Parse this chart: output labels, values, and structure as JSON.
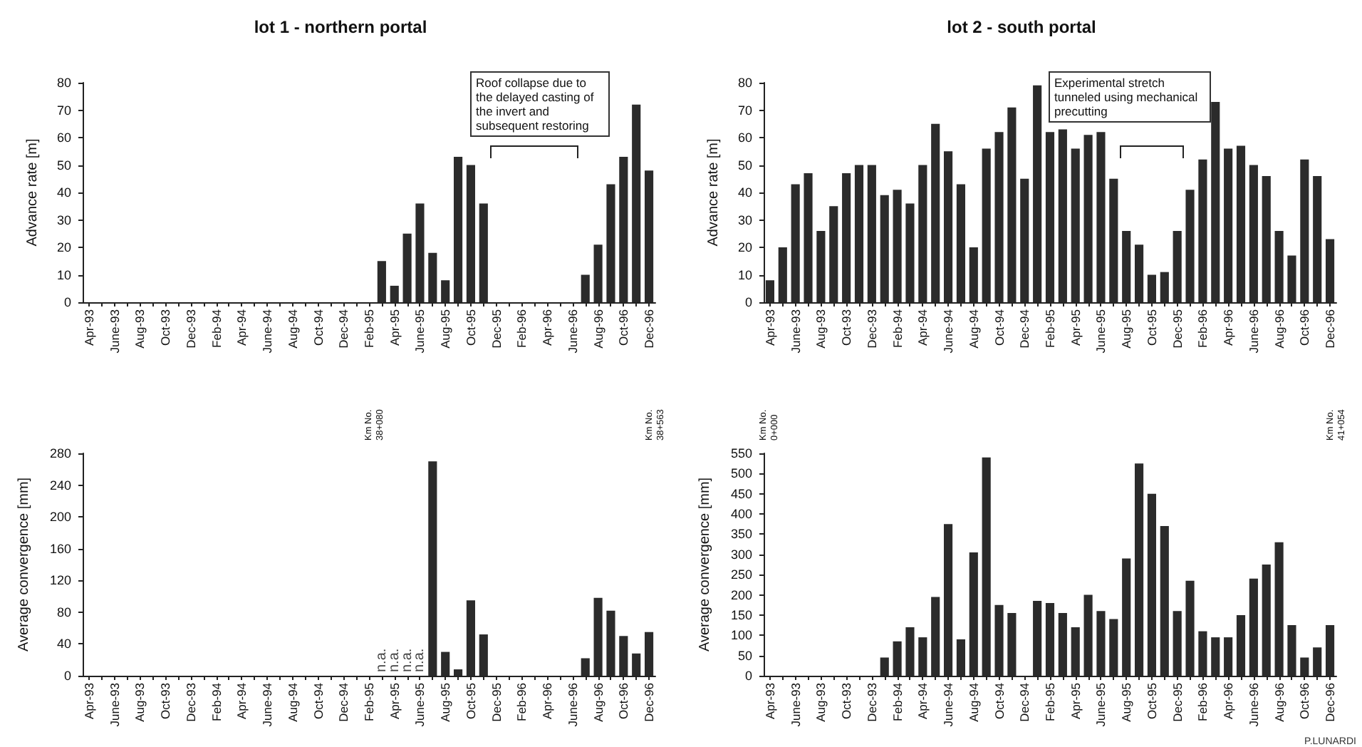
{
  "chart_data": [
    {
      "type": "bar",
      "title": "lot 1 - northern portal",
      "ylabel": "Advance rate [m]",
      "color": "#2b2b2b",
      "categories": [
        "Apr-93",
        null,
        "June-93",
        null,
        "Aug-93",
        null,
        "Oct-93",
        null,
        "Dec-93",
        null,
        "Feb-94",
        null,
        "Apr-94",
        null,
        "June-94",
        null,
        "Aug-94",
        null,
        "Oct-94",
        null,
        "Dec-94",
        null,
        "Feb-95",
        null,
        "Apr-95",
        null,
        "June-95",
        null,
        "Aug-95",
        null,
        "Oct-95",
        null,
        "Dec-95",
        null,
        "Feb-96",
        null,
        "Apr-96",
        null,
        "June-96",
        null,
        "Aug-96",
        null,
        "Oct-96",
        null,
        "Dec-96"
      ],
      "values": [
        0,
        0,
        0,
        0,
        0,
        0,
        0,
        0,
        0,
        0,
        0,
        0,
        0,
        0,
        0,
        0,
        0,
        0,
        0,
        0,
        0,
        0,
        0,
        15,
        6,
        25,
        36,
        18,
        8,
        53,
        50,
        36,
        0,
        0,
        0,
        0,
        0,
        0,
        0,
        10,
        21,
        43,
        53,
        72,
        48
      ],
      "ylim": [
        0,
        80
      ],
      "yticks": [
        0,
        10,
        20,
        30,
        40,
        50,
        60,
        70,
        80
      ],
      "grid": false,
      "annotations": [
        "Roof collapse due to the delayed casting of the invert and subsequent restoring"
      ]
    },
    {
      "type": "bar",
      "title": "lot 2 - south portal",
      "ylabel": "Advance rate [m]",
      "color": "#2b2b2b",
      "categories": [
        "Apr-93",
        null,
        "June-93",
        null,
        "Aug-93",
        null,
        "Oct-93",
        null,
        "Dec-93",
        null,
        "Feb-94",
        null,
        "Apr-94",
        null,
        "June-94",
        null,
        "Aug-94",
        null,
        "Oct-94",
        null,
        "Dec-94",
        null,
        "Feb-95",
        null,
        "Apr-95",
        null,
        "June-95",
        null,
        "Aug-95",
        null,
        "Oct-95",
        null,
        "Dec-95",
        null,
        "Feb-96",
        null,
        "Apr-96",
        null,
        "June-96",
        null,
        "Aug-96",
        null,
        "Oct-96",
        null,
        "Dec-96"
      ],
      "values": [
        8,
        20,
        43,
        47,
        26,
        35,
        47,
        50,
        50,
        39,
        41,
        36,
        50,
        65,
        55,
        43,
        20,
        56,
        62,
        71,
        45,
        79,
        62,
        63,
        56,
        61,
        62,
        45,
        26,
        21,
        10,
        11,
        26,
        41,
        52,
        73,
        56,
        57,
        50,
        46,
        26,
        17,
        52,
        46,
        23
      ],
      "ylim": [
        0,
        80
      ],
      "yticks": [
        0,
        10,
        20,
        30,
        40,
        50,
        60,
        70,
        80
      ],
      "grid": false,
      "annotations": [
        "Experimental stretch tunneled using mechanical precutting"
      ]
    },
    {
      "type": "bar",
      "ylabel": "Average convergence [mm]",
      "color": "#2b2b2b",
      "categories": [
        "Apr-93",
        null,
        "June-93",
        null,
        "Aug-93",
        null,
        "Oct-93",
        null,
        "Dec-93",
        null,
        "Feb-94",
        null,
        "Apr-94",
        null,
        "June-94",
        null,
        "Aug-94",
        null,
        "Oct-94",
        null,
        "Dec-94",
        null,
        "Feb-95",
        null,
        "Apr-95",
        null,
        "June-95",
        null,
        "Aug-95",
        null,
        "Oct-95",
        null,
        "Dec-95",
        null,
        "Feb-96",
        null,
        "Apr-96",
        null,
        "June-96",
        null,
        "Aug-96",
        null,
        "Oct-96",
        null,
        "Dec-96"
      ],
      "values": [
        0,
        0,
        0,
        0,
        0,
        0,
        0,
        0,
        0,
        0,
        0,
        0,
        0,
        0,
        0,
        0,
        0,
        0,
        0,
        0,
        0,
        0,
        0,
        null,
        null,
        null,
        null,
        270,
        30,
        8,
        95,
        52,
        0,
        0,
        0,
        0,
        0,
        0,
        0,
        22,
        98,
        82,
        50,
        28,
        55
      ],
      "value_labels": [
        null,
        null,
        null,
        null,
        null,
        null,
        null,
        null,
        null,
        null,
        null,
        null,
        null,
        null,
        null,
        null,
        null,
        null,
        null,
        null,
        null,
        null,
        null,
        "n.a.",
        "n.a.",
        "n.a.",
        "n.a.",
        null,
        null,
        null,
        null,
        null,
        null,
        null,
        null,
        null,
        null,
        null,
        null,
        null,
        null,
        null,
        null,
        null,
        null
      ],
      "ylim": [
        0,
        280
      ],
      "yticks": [
        0,
        40,
        80,
        120,
        160,
        200,
        240,
        280
      ],
      "grid": false,
      "annotations": [
        "Km No. 38+080",
        "Km No. 38+563"
      ]
    },
    {
      "type": "bar",
      "ylabel": "Average convergence [mm]",
      "color": "#2b2b2b",
      "categories": [
        "Apr-93",
        null,
        "June-93",
        null,
        "Aug-93",
        null,
        "Oct-93",
        null,
        "Dec-93",
        null,
        "Feb-94",
        null,
        "Apr-94",
        null,
        "June-94",
        null,
        "Aug-94",
        null,
        "Oct-94",
        null,
        "Dec-94",
        null,
        "Feb-95",
        null,
        "Apr-95",
        null,
        "June-95",
        null,
        "Aug-95",
        null,
        "Oct-95",
        null,
        "Dec-95",
        null,
        "Feb-96",
        null,
        "Apr-96",
        null,
        "June-96",
        null,
        "Aug-96",
        null,
        "Oct-96",
        null,
        "Dec-96"
      ],
      "values": [
        0,
        0,
        0,
        0,
        0,
        0,
        0,
        0,
        0,
        45,
        85,
        120,
        95,
        195,
        375,
        90,
        305,
        540,
        175,
        155,
        0,
        185,
        180,
        155,
        120,
        200,
        160,
        140,
        290,
        525,
        450,
        370,
        160,
        235,
        110,
        95,
        95,
        150,
        240,
        275,
        330,
        125,
        45,
        70,
        125
      ],
      "ylim": [
        0,
        550
      ],
      "yticks": [
        0,
        50,
        100,
        150,
        200,
        250,
        300,
        350,
        400,
        450,
        500,
        550
      ],
      "grid": false,
      "annotations": [
        "Km No. 0+000",
        "Km No. 41+054",
        "P.LUNARDI"
      ]
    }
  ]
}
